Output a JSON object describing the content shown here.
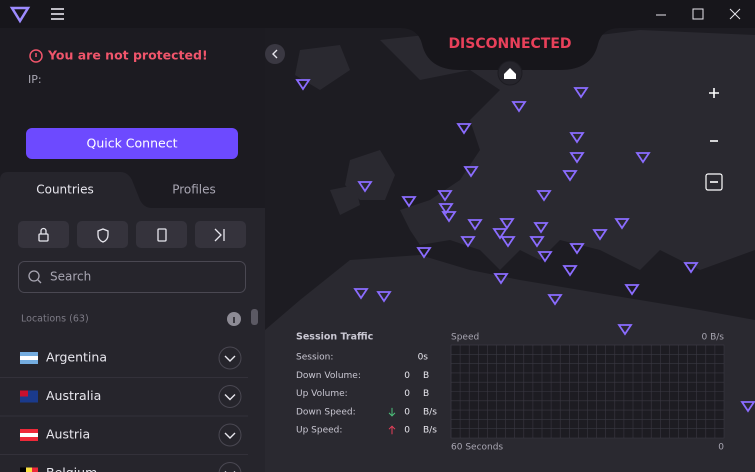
{
  "window": {
    "status": "DISCONNECTED"
  },
  "sidebar": {
    "warning": "You are not protected!",
    "ip_label": "IP:",
    "quick_connect": "Quick Connect",
    "tabs": [
      "Countries",
      "Profiles"
    ],
    "search_placeholder": "Search",
    "locations_label": "Locations (63)",
    "countries": [
      "Argentina",
      "Australia",
      "Austria",
      "Belgium"
    ]
  },
  "traffic": {
    "title": "Session Traffic",
    "rows": [
      {
        "label": "Session:",
        "value": "0s"
      },
      {
        "label": "Down Volume:",
        "value": 0,
        "unit": "B"
      },
      {
        "label": "Up Volume:",
        "value": 0,
        "unit": "B"
      },
      {
        "label": "Down Speed:",
        "value": 0,
        "unit": "B/s"
      },
      {
        "label": "Up Speed:",
        "value": 0,
        "unit": "B/s"
      }
    ],
    "graph": {
      "label": "Speed",
      "max_label": "0 B/s",
      "x_label": "60 Seconds",
      "x_end": 0
    }
  }
}
